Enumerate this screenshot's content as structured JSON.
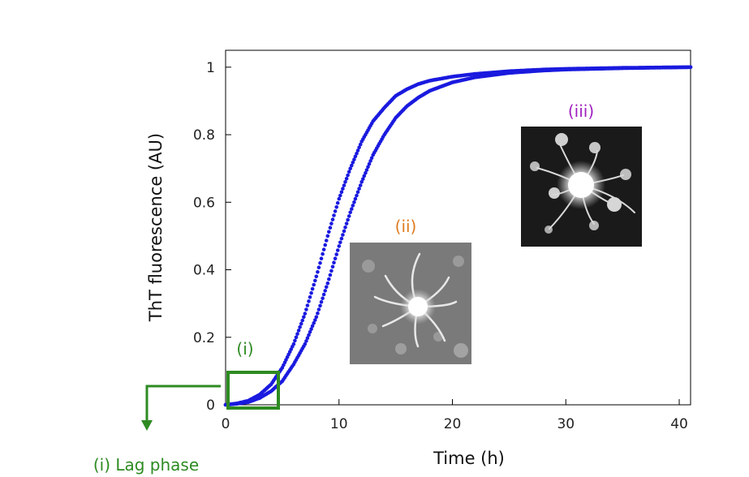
{
  "chart_data": {
    "type": "scatter",
    "xlabel": "Time (h)",
    "ylabel": "ThT fluorescence (AU)",
    "xlim": [
      0,
      41
    ],
    "ylim": [
      0,
      1.05
    ],
    "x_ticks": [
      0,
      10,
      20,
      30,
      40
    ],
    "y_ticks": [
      0,
      0.2,
      0.4,
      0.6,
      0.8,
      1
    ],
    "x_tick_labels": [
      "0",
      "10",
      "20",
      "30",
      "40"
    ],
    "y_tick_labels": [
      "0",
      "0.2",
      "0.4",
      "0.6",
      "0.8",
      "1"
    ],
    "grid": false,
    "series": [
      {
        "color": "#1a1adf",
        "x": [
          0,
          1,
          2,
          3,
          4,
          5,
          6,
          7,
          8,
          9,
          10,
          11,
          12,
          13,
          14,
          15,
          16,
          17,
          18,
          20,
          22,
          25,
          28,
          30,
          35,
          41
        ],
        "y": [
          0,
          0.004,
          0.012,
          0.03,
          0.06,
          0.11,
          0.18,
          0.27,
          0.38,
          0.5,
          0.61,
          0.7,
          0.78,
          0.84,
          0.88,
          0.915,
          0.935,
          0.95,
          0.96,
          0.972,
          0.98,
          0.988,
          0.993,
          0.995,
          0.998,
          1.0
        ]
      },
      {
        "color": "#1a1adf",
        "x": [
          0,
          1,
          2,
          3,
          4,
          5,
          6,
          7,
          8,
          9,
          10,
          11,
          12,
          13,
          14,
          15,
          16,
          17,
          18,
          20,
          22,
          25,
          28,
          30,
          35,
          41
        ],
        "y": [
          0,
          0.003,
          0.008,
          0.02,
          0.04,
          0.07,
          0.12,
          0.18,
          0.26,
          0.36,
          0.47,
          0.57,
          0.66,
          0.74,
          0.8,
          0.85,
          0.885,
          0.91,
          0.93,
          0.955,
          0.97,
          0.983,
          0.99,
          0.993,
          0.997,
          1.0
        ]
      }
    ],
    "annotations": [
      {
        "label": "(i)",
        "color": "#2e8b22"
      },
      {
        "label": "(ii)",
        "color": "#e07b20"
      },
      {
        "label": "(iii)",
        "color": "#a020c0"
      },
      {
        "label": "(i) Lag phase",
        "color": "#2e8b22"
      }
    ]
  }
}
